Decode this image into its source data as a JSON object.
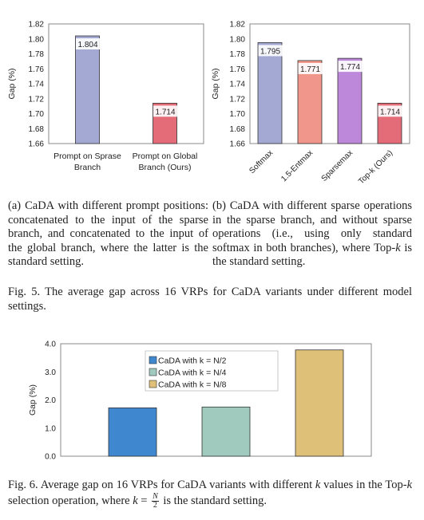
{
  "chart_data": [
    {
      "type": "bar",
      "ylabel": "Gap (%)",
      "ylim": [
        1.66,
        1.82
      ],
      "yticks": [
        "1.66",
        "1.68",
        "1.70",
        "1.72",
        "1.74",
        "1.76",
        "1.78",
        "1.80",
        "1.82"
      ],
      "categories": [
        [
          "Prompt on Sprase",
          "Branch"
        ],
        [
          "Prompt on Global",
          "Branch (Ours)"
        ]
      ],
      "values": [
        1.804,
        1.714
      ],
      "value_labels": [
        "1.804",
        "1.714"
      ],
      "colors": [
        "#a3a9d3",
        "#e46b78"
      ],
      "grid": false
    },
    {
      "type": "bar",
      "ylabel": "Gap (%)",
      "ylim": [
        1.66,
        1.82
      ],
      "yticks": [
        "1.66",
        "1.68",
        "1.70",
        "1.72",
        "1.74",
        "1.76",
        "1.78",
        "1.80",
        "1.82"
      ],
      "categories": [
        "Softmax",
        "1.5-Entmax",
        "Sparsemax",
        "Top-k (Ours)"
      ],
      "values": [
        1.795,
        1.771,
        1.774,
        1.714
      ],
      "value_labels": [
        "1.795",
        "1.771",
        "1.774",
        "1.714"
      ],
      "colors": [
        "#a3a9d3",
        "#f0968a",
        "#bd87da",
        "#e46b78"
      ],
      "grid": false
    },
    {
      "type": "bar",
      "ylabel": "Gap (%)",
      "ylim": [
        0.0,
        4.0
      ],
      "yticks": [
        "0.0",
        "1.0",
        "2.0",
        "3.0",
        "4.0"
      ],
      "categories": [
        "",
        "",
        ""
      ],
      "series": [
        {
          "name": "CaDA with k = N/2",
          "value": 1.72,
          "color": "#3f87cf"
        },
        {
          "name": "CaDA with k = N/4",
          "value": 1.75,
          "color": "#9fcabd"
        },
        {
          "name": "CaDA with k = N/8",
          "value": 3.78,
          "color": "#dfc078"
        }
      ],
      "legend_position": "top-center",
      "grid": false
    }
  ],
  "captions": {
    "a_label": "(a)",
    "a_text": "CaDA with different prompt positions: concatenated to the input of the sparse branch, and concatenated to the input of the global branch, where the latter is the standard setting.",
    "b_label": "(b)",
    "b_text_1": "CaDA with different sparse operations in the sparse branch, and without sparse operations (i.e., using only standard softmax in both branches), where Top-",
    "b_k": "k",
    "b_text_2": " is the standard setting.",
    "fig5_label": "Fig. 5.",
    "fig5_text": "The average gap across 16 VRPs for CaDA variants under different model settings.",
    "fig6_label": "Fig. 6.",
    "fig6_text_1": "Average gap on 16 VRPs for CaDA variants with different ",
    "fig6_k1": "k",
    "fig6_text_2": " values in the Top-",
    "fig6_k2": "k",
    "fig6_text_3": " selection operation, where ",
    "fig6_k3": "k",
    "fig6_eq": " = ",
    "fig6_N": "N",
    "fig6_2": "2",
    "fig6_text_4": " is the standard setting."
  }
}
